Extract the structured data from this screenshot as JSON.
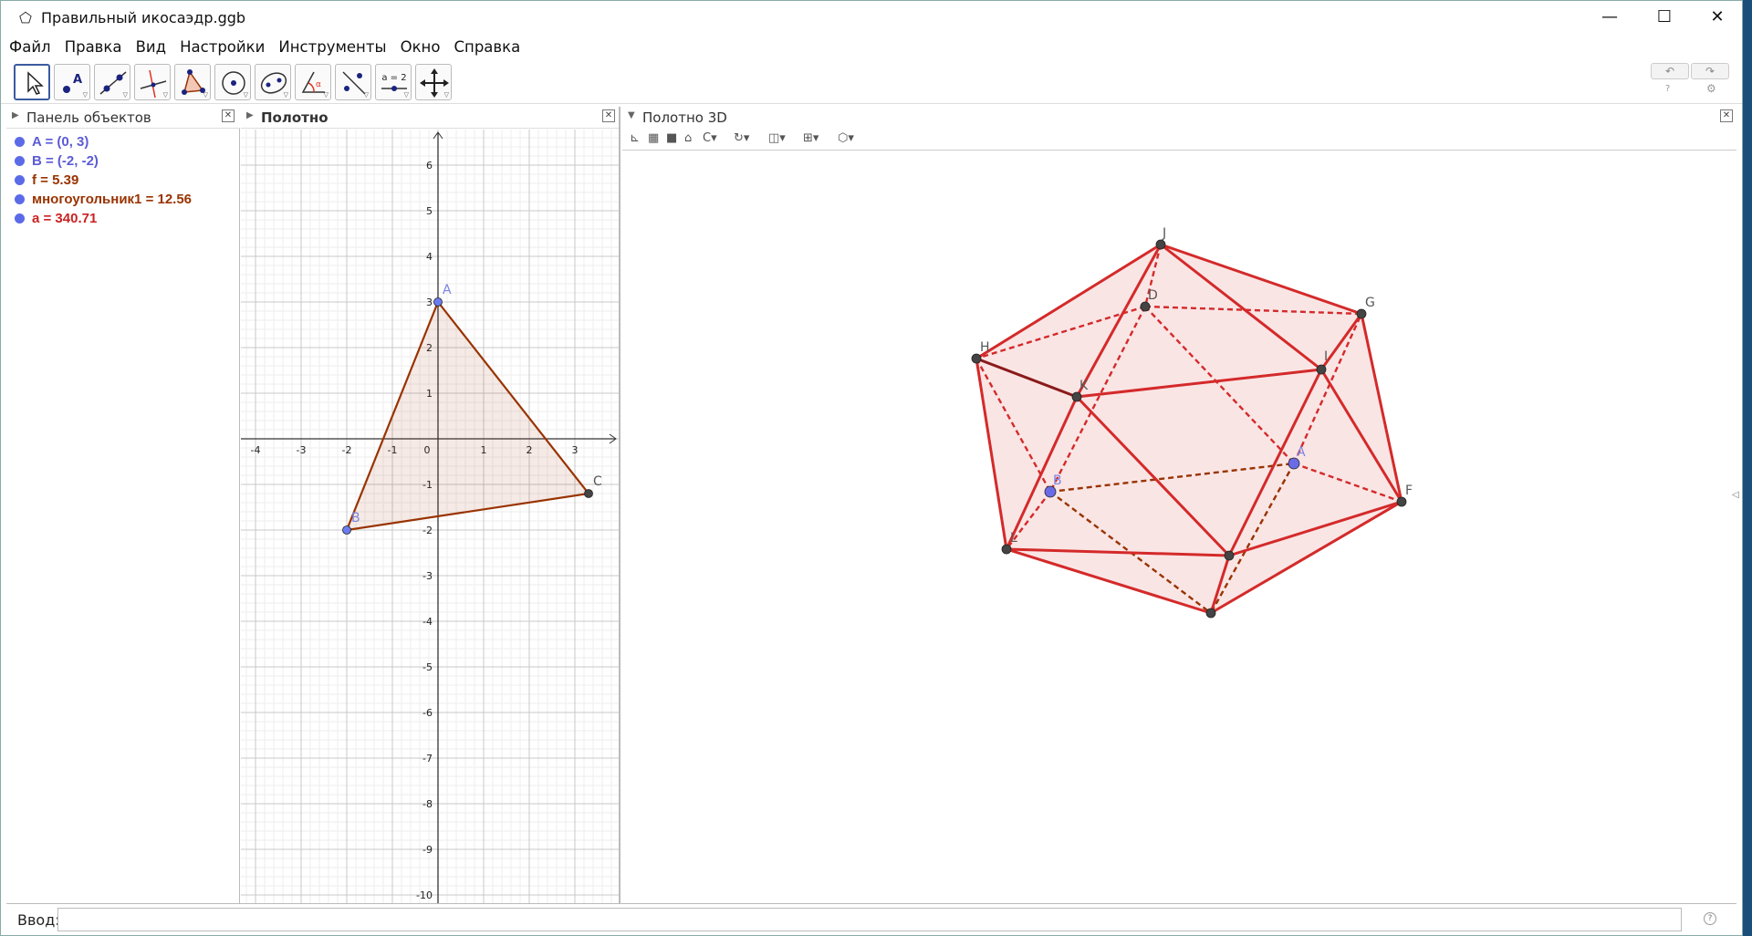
{
  "window": {
    "title": "Правильный икосаэдр.ggb",
    "controls": {
      "minimize": "—",
      "maximize": "☐",
      "close": "✕"
    }
  },
  "menu": [
    "Файл",
    "Правка",
    "Вид",
    "Настройки",
    "Инструменты",
    "Окно",
    "Справка"
  ],
  "toolbar": {
    "tools": [
      "move",
      "point",
      "line",
      "perpendicular",
      "polygon",
      "circle",
      "conic",
      "angle",
      "reflect",
      "slider",
      "move-view"
    ],
    "slider_label": "a = 2",
    "undo": "↶",
    "redo": "↷",
    "help": "?",
    "settings": "⚙"
  },
  "algebra": {
    "title": "Панель объектов",
    "objects": [
      {
        "text": "A = (0, 3)",
        "color": "#5b5bd6"
      },
      {
        "text": "B = (-2, -2)",
        "color": "#5b5bd6"
      },
      {
        "text": "f = 5.39",
        "color": "#993300"
      },
      {
        "text": "многоугольник1 = 12.56",
        "color": "#993300"
      },
      {
        "text": "a = 340.71",
        "color": "#cc2222"
      }
    ]
  },
  "graphics": {
    "title": "Полотно",
    "x_ticks": [
      "-4",
      "-3",
      "-2",
      "-1",
      "0",
      "1",
      "2",
      "3"
    ],
    "y_ticks": [
      "6",
      "5",
      "4",
      "3",
      "2",
      "1",
      "-1",
      "-2",
      "-3",
      "-4",
      "-5",
      "-6",
      "-7",
      "-8",
      "-9",
      "-10"
    ],
    "points": {
      "A": {
        "label": "A",
        "x": 0,
        "y": 3
      },
      "B": {
        "label": "B",
        "x": -2,
        "y": -2
      },
      "C": {
        "label": "C",
        "x": 3.3,
        "y": -1.2
      }
    },
    "polygon_color": "#993300"
  },
  "view3d": {
    "title": "Полотно 3D",
    "vertex_labels": [
      "J",
      "D",
      "G",
      "H",
      "I",
      "K",
      "A",
      "B",
      "F",
      "L"
    ],
    "edge_color": "#d42a2a"
  },
  "input": {
    "label": "Ввод:",
    "value": "",
    "help": "?"
  }
}
